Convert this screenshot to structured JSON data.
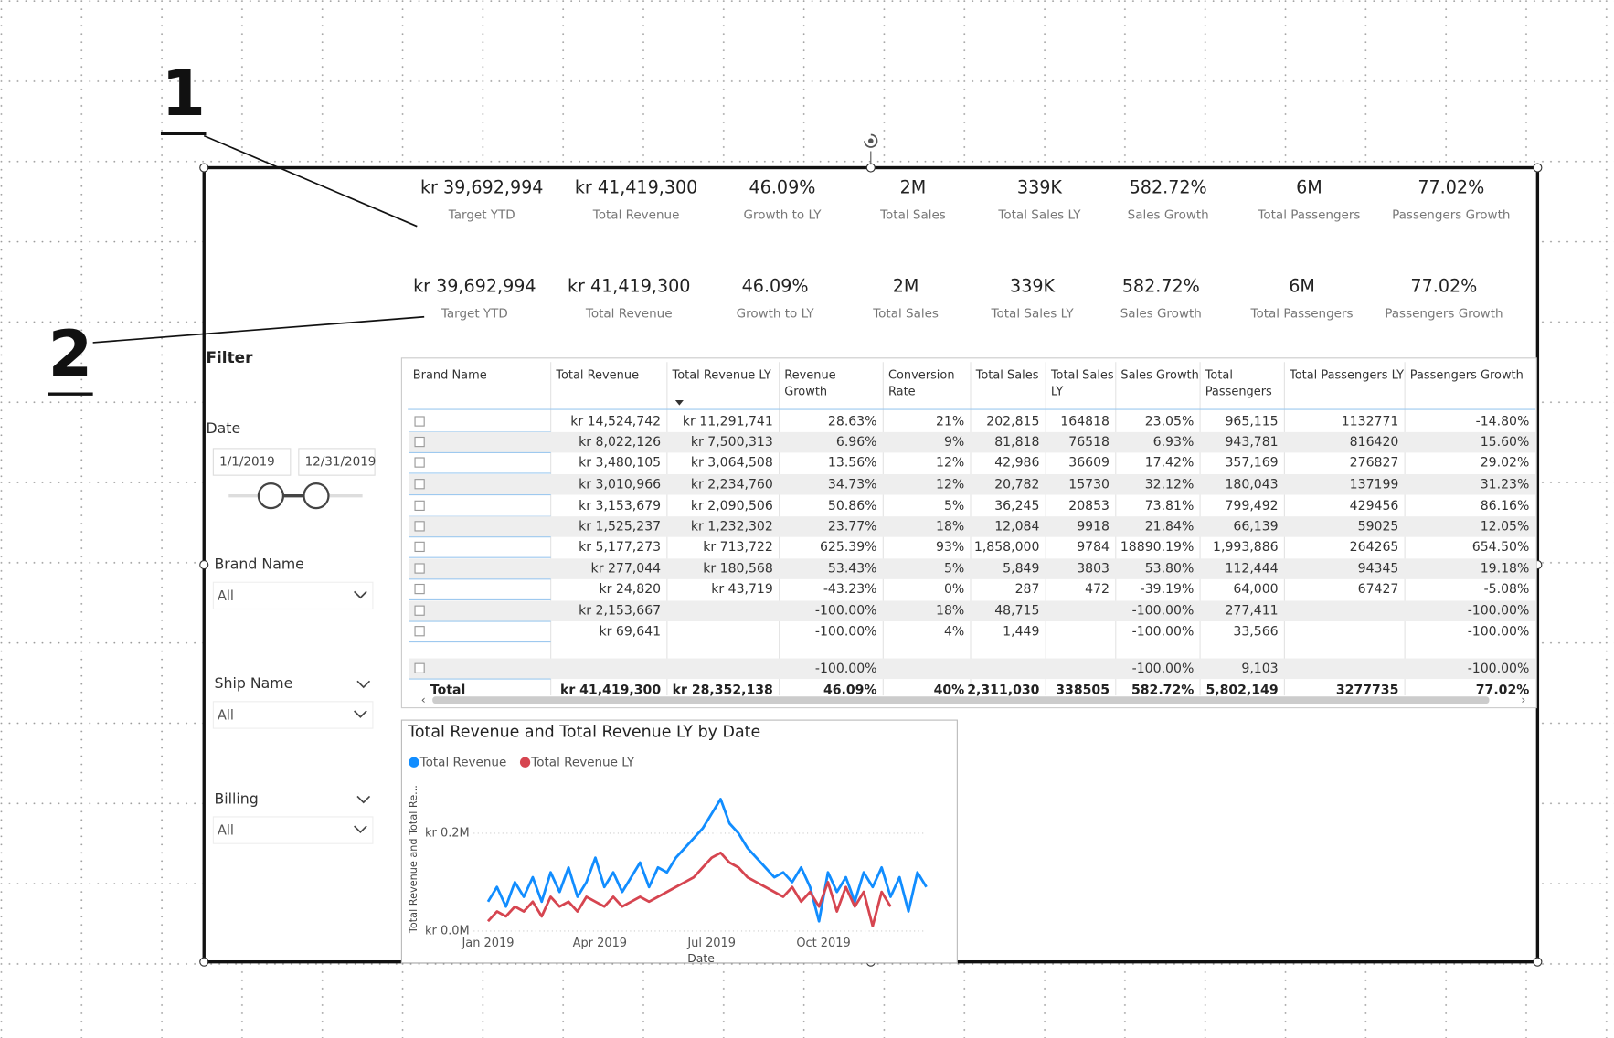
{
  "annotations": [
    "1",
    "2"
  ],
  "kpi_rows": [
    [
      {
        "value": "kr 39,692,994",
        "label": "Target YTD"
      },
      {
        "value": "kr 41,419,300",
        "label": "Total Revenue"
      },
      {
        "value": "46.09%",
        "label": "Growth to LY"
      },
      {
        "value": "2M",
        "label": "Total Sales"
      },
      {
        "value": "339K",
        "label": "Total Sales LY"
      },
      {
        "value": "582.72%",
        "label": "Sales Growth"
      },
      {
        "value": "6M",
        "label": "Total Passengers"
      },
      {
        "value": "77.02%",
        "label": "Passengers Growth"
      }
    ],
    [
      {
        "value": "kr 39,692,994",
        "label": "Target YTD"
      },
      {
        "value": "kr 41,419,300",
        "label": "Total Revenue"
      },
      {
        "value": "46.09%",
        "label": "Growth to LY"
      },
      {
        "value": "2M",
        "label": "Total Sales"
      },
      {
        "value": "339K",
        "label": "Total Sales LY"
      },
      {
        "value": "582.72%",
        "label": "Sales Growth"
      },
      {
        "value": "6M",
        "label": "Total Passengers"
      },
      {
        "value": "77.02%",
        "label": "Passengers Growth"
      }
    ]
  ],
  "filter": {
    "title": "Filter",
    "date": {
      "label": "Date",
      "start": "1/1/2019",
      "end": "12/31/2019"
    },
    "slicers": [
      {
        "label": "Brand Name",
        "value": "All"
      },
      {
        "label": "Ship Name",
        "value": "All"
      },
      {
        "label": "Billing",
        "value": "All"
      }
    ]
  },
  "table": {
    "columns": [
      "Brand Name",
      "Total Revenue",
      "Total Revenue LY",
      "Revenue Growth",
      "Conversion Rate",
      "Total Sales",
      "Total Sales LY",
      "Sales Growth",
      "Total Passengers",
      "Total Passengers LY",
      "Passengers Growth"
    ],
    "rows": [
      [
        null,
        "kr 14,524,742",
        "kr 11,291,741",
        "28.63%",
        "21%",
        "202,815",
        "164818",
        "23.05%",
        "965,115",
        "1132771",
        "-14.80%"
      ],
      [
        null,
        "kr 8,022,126",
        "kr 7,500,313",
        "6.96%",
        "9%",
        "81,818",
        "76518",
        "6.93%",
        "943,781",
        "816420",
        "15.60%"
      ],
      [
        null,
        "kr 3,480,105",
        "kr 3,064,508",
        "13.56%",
        "12%",
        "42,986",
        "36609",
        "17.42%",
        "357,169",
        "276827",
        "29.02%"
      ],
      [
        null,
        "kr 3,010,966",
        "kr 2,234,760",
        "34.73%",
        "12%",
        "20,782",
        "15730",
        "32.12%",
        "180,043",
        "137199",
        "31.23%"
      ],
      [
        null,
        "kr 3,153,679",
        "kr 2,090,506",
        "50.86%",
        "5%",
        "36,245",
        "20853",
        "73.81%",
        "799,492",
        "429456",
        "86.16%"
      ],
      [
        null,
        "kr 1,525,237",
        "kr 1,232,302",
        "23.77%",
        "18%",
        "12,084",
        "9918",
        "21.84%",
        "66,139",
        "59025",
        "12.05%"
      ],
      [
        null,
        "kr 5,177,273",
        "kr 713,722",
        "625.39%",
        "93%",
        "1,858,000",
        "9784",
        "18890.19%",
        "1,993,886",
        "264265",
        "654.50%"
      ],
      [
        null,
        "kr 277,044",
        "kr 180,568",
        "53.43%",
        "5%",
        "5,849",
        "3803",
        "53.80%",
        "112,444",
        "94345",
        "19.18%"
      ],
      [
        null,
        "kr 24,820",
        "kr 43,719",
        "-43.23%",
        "0%",
        "287",
        "472",
        "-39.19%",
        "64,000",
        "67427",
        "-5.08%"
      ],
      [
        null,
        "kr 2,153,667",
        null,
        "-100.00%",
        "18%",
        "48,715",
        null,
        "-100.00%",
        "277,411",
        null,
        "-100.00%"
      ],
      [
        null,
        "kr 69,641",
        null,
        "-100.00%",
        "4%",
        "1,449",
        null,
        "-100.00%",
        "33,566",
        null,
        "-100.00%"
      ],
      [
        null,
        null,
        null,
        "-100.00%",
        null,
        null,
        null,
        "-100.00%",
        "9,103",
        null,
        "-100.00%"
      ]
    ],
    "total": [
      "Total",
      "kr 41,419,300",
      "kr 28,352,138",
      "46.09%",
      "40%",
      "2,311,030",
      "338505",
      "582.72%",
      "5,802,149",
      "3277735",
      "77.02%"
    ]
  },
  "chart_data": {
    "type": "line",
    "title": "Total Revenue and Total Revenue LY by Date",
    "y_label": "Total Revenue and Total Re...",
    "x_label": "Date",
    "xlim": [
      0,
      49
    ],
    "xticks": [
      {
        "value": 0,
        "label": "Jan 2019"
      },
      {
        "value": 12.5,
        "label": "Apr 2019"
      },
      {
        "value": 25,
        "label": "Jul 2019"
      },
      {
        "value": 37.5,
        "label": "Oct 2019"
      }
    ],
    "ylim": [
      0,
      0.28
    ],
    "yticks": [
      {
        "value": 0,
        "label": "kr 0.0M"
      },
      {
        "value": 0.2,
        "label": "kr 0.2M"
      }
    ],
    "grid": true,
    "series": [
      {
        "name": "Total Revenue",
        "color": "#118dff",
        "values": [
          0.06,
          0.09,
          0.05,
          0.1,
          0.07,
          0.11,
          0.06,
          0.12,
          0.08,
          0.13,
          0.07,
          0.1,
          0.15,
          0.09,
          0.12,
          0.08,
          0.11,
          0.14,
          0.09,
          0.13,
          0.12,
          0.15,
          0.17,
          0.19,
          0.21,
          0.24,
          0.27,
          0.22,
          0.2,
          0.17,
          0.15,
          0.13,
          0.11,
          0.12,
          0.1,
          0.13,
          0.09,
          0.02,
          0.12,
          0.08,
          0.11,
          0.06,
          0.12,
          0.09,
          0.13,
          0.07,
          0.11,
          0.04,
          0.12,
          0.09
        ]
      },
      {
        "name": "Total Revenue LY",
        "color": "#d64550",
        "values": [
          0.02,
          0.04,
          0.03,
          0.05,
          0.04,
          0.06,
          0.03,
          0.07,
          0.05,
          0.06,
          0.04,
          0.07,
          0.06,
          0.05,
          0.07,
          0.05,
          0.06,
          0.07,
          0.06,
          0.07,
          0.08,
          0.09,
          0.1,
          0.11,
          0.13,
          0.15,
          0.16,
          0.14,
          0.13,
          0.11,
          0.1,
          0.09,
          0.08,
          0.07,
          0.09,
          0.06,
          0.08,
          0.05,
          0.1,
          0.04,
          0.09,
          0.05,
          0.08,
          0.01,
          0.08,
          0.05
        ]
      }
    ]
  }
}
